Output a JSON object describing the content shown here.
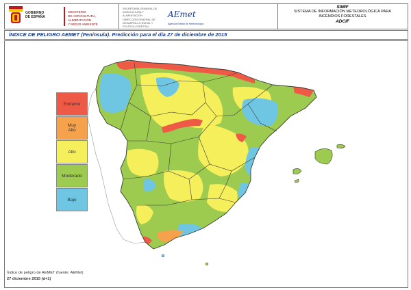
{
  "header": {
    "government": "GOBIERNO\nDE ESPAÑA",
    "ministry": "MINISTERIO\nDE AGRICULTURA, ALIMENTACIÓN\nY MEDIO AMBIENTE",
    "sub_direction": "SECRETARÍA GENERAL DE AGRICULTURA Y ALIMENTACIÓN\nDIRECCIÓN GENERAL DE DESARROLLO RURAL Y POLÍTICA FORESTAL",
    "agency_logo": "AEmet",
    "agency_sub": "Agencia Estatal de Meteorología",
    "system_title": "SIMIF",
    "system_name": "SISTEMA DE INFORMACIÓN METEOROLÓGICA PARA INCENDIOS FORESTALES",
    "system_acronym": "ADCIF"
  },
  "title": "ÍNDICE DE PELIGRO AEMET (Península). Predicción para el día 27 de diciembre de 2015",
  "legend": [
    {
      "label": "Extremo",
      "color": "#ee5a45"
    },
    {
      "label": "Muy Alto",
      "color": "#f6a14c"
    },
    {
      "label": "Alto",
      "color": "#f4ef5a"
    },
    {
      "label": "Moderado",
      "color": "#9ccb4f"
    },
    {
      "label": "Bajo",
      "color": "#6ec6e2"
    }
  ],
  "map_colors": {
    "moderado": "#9ccb4f",
    "alto": "#f4ef5a",
    "bajo": "#6ec6e2",
    "extremo": "#ee5a45",
    "muy_alto": "#f6a14c",
    "borders": "#3a3a3a"
  },
  "footer": {
    "source": "Índice de peligro de AEMET (fuente: AEMet)",
    "date": "27 diciembre 2015 (d+1)"
  }
}
